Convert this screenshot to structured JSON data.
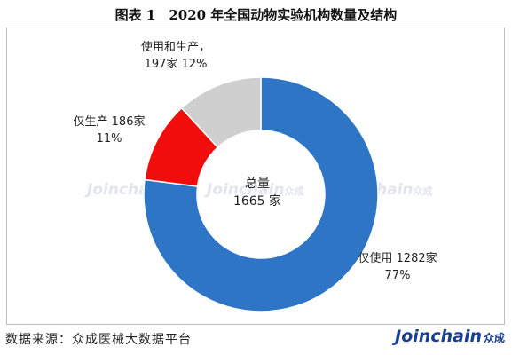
{
  "figure": {
    "title": "图表 1　2020 年全国动物实验机构数量及结构",
    "source": "数据来源：众成医械大数据平台",
    "brand": {
      "en": "Joinchain",
      "cn": "众成"
    },
    "watermark": {
      "en": "Joinchain",
      "cn": "众成"
    }
  },
  "chart_data": {
    "type": "pie",
    "hole": "donut",
    "center_label": [
      "总量",
      "1665 家"
    ],
    "total": 1665,
    "unit": "家",
    "categories": [
      "仅使用",
      "仅生产",
      "使用和生产"
    ],
    "values": [
      1282,
      186,
      197
    ],
    "percentages": [
      77,
      11,
      12
    ],
    "colors": [
      "#2e75c6",
      "#f20d0d",
      "#cfcfcf"
    ],
    "data_labels": [
      [
        "仅使用 1282家",
        "77%"
      ],
      [
        "仅生产  186家",
        "11%"
      ],
      [
        "使用和生产，",
        "197家 12%"
      ]
    ]
  }
}
